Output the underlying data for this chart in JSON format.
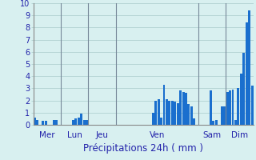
{
  "title": "",
  "xlabel": "Précipitations 24h ( mm )",
  "background_color": "#d8f0f0",
  "bar_color": "#1a6fce",
  "ylim": [
    0,
    10
  ],
  "yticks": [
    0,
    1,
    2,
    3,
    4,
    5,
    6,
    7,
    8,
    9,
    10
  ],
  "day_labels": [
    "Mer",
    "Lun",
    "Jeu",
    "Ven",
    "Sam",
    "Dim"
  ],
  "day_centers": [
    4.5,
    14.5,
    24.5,
    44.5,
    64.5,
    74.5
  ],
  "day_starts": [
    0,
    10,
    20,
    30,
    60,
    70
  ],
  "values": [
    0.6,
    0.4,
    0.0,
    0.3,
    0.3,
    0.0,
    0.0,
    0.4,
    0.4,
    0.0,
    0.0,
    0.0,
    0.0,
    0.0,
    0.4,
    0.5,
    0.6,
    0.9,
    0.4,
    0.4,
    0.0,
    0.0,
    0.0,
    0.0,
    0.0,
    0.0,
    0.0,
    0.0,
    0.0,
    0.0,
    0.0,
    0.0,
    0.0,
    0.0,
    0.0,
    0.0,
    0.0,
    0.0,
    0.0,
    0.0,
    0.0,
    0.0,
    0.0,
    1.0,
    2.0,
    2.1,
    0.6,
    3.3,
    2.1,
    2.0,
    2.0,
    1.9,
    1.8,
    2.8,
    2.7,
    2.6,
    1.7,
    1.5,
    0.5,
    0.0,
    0.0,
    0.0,
    0.0,
    0.0,
    2.8,
    0.3,
    0.4,
    0.0,
    1.5,
    1.5,
    2.7,
    2.8,
    2.9,
    0.4,
    3.0,
    4.2,
    5.9,
    8.4,
    9.4,
    3.2
  ],
  "grid_color": "#aacccc",
  "vline_color": "#778899",
  "tick_color": "#2222aa",
  "label_color": "#2222aa",
  "xlabel_fontsize": 8.5,
  "tick_fontsize": 7,
  "day_label_fontsize": 7.5
}
